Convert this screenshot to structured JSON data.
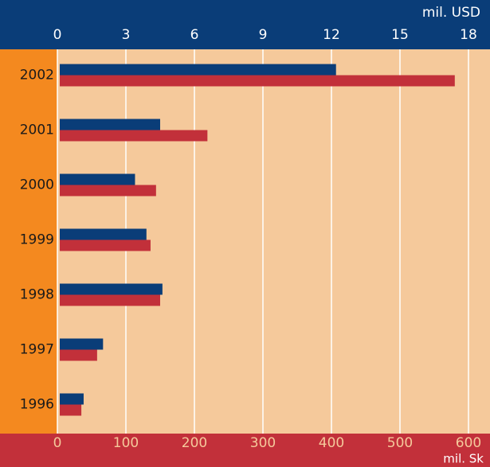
{
  "chart_data": {
    "type": "bar",
    "orientation": "horizontal",
    "categories": [
      "2002",
      "2001",
      "2000",
      "1999",
      "1998",
      "1997",
      "1996"
    ],
    "series": [
      {
        "color": "#0a3d78",
        "axis": "x2",
        "values": [
          12.2,
          4.5,
          3.4,
          3.9,
          4.6,
          2.0,
          1.15
        ]
      },
      {
        "color": "#c2303a",
        "axis": "x",
        "values": [
          580,
          219,
          144,
          136,
          150,
          58,
          35
        ]
      }
    ],
    "xlabel": "mil. Sk",
    "x2label": "mil. USD",
    "xlim": [
      0,
      600
    ],
    "xticks": [
      0,
      100,
      200,
      300,
      400,
      500,
      600
    ],
    "x2lim": [
      0,
      18
    ],
    "x2ticks": [
      0,
      3,
      6,
      9,
      12,
      15,
      18
    ],
    "grid": true
  }
}
